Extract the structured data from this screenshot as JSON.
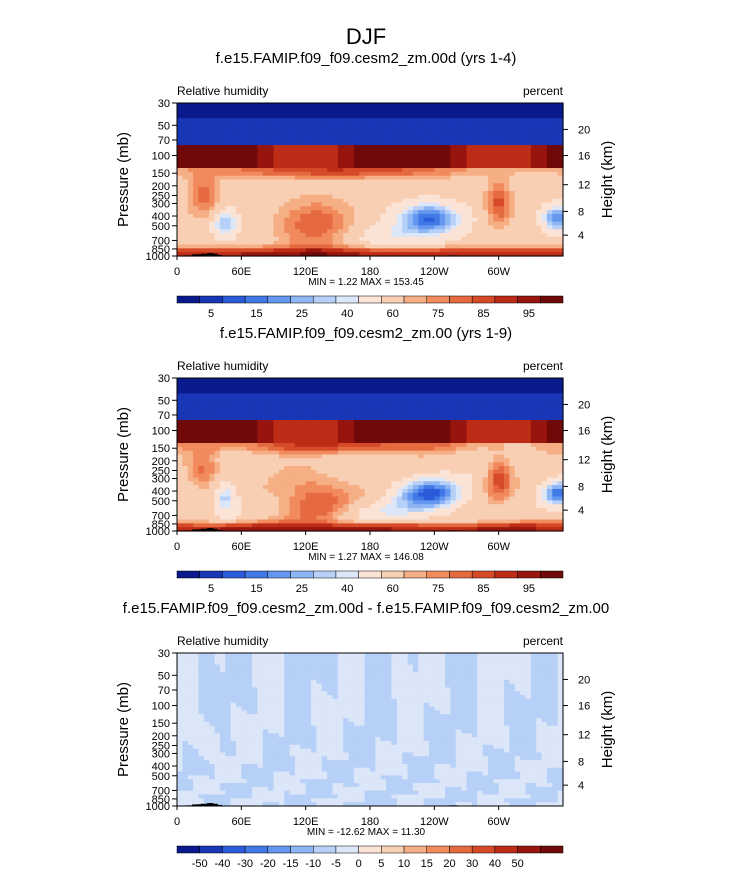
{
  "page": {
    "title": "DJF"
  },
  "colors": {
    "rh_palette": [
      "#0a1a8c",
      "#1836b6",
      "#2a5bd8",
      "#4179e6",
      "#6497ef",
      "#8fb6f4",
      "#b7d0f7",
      "#dbe6f8",
      "#fbe3d6",
      "#f9cfb4",
      "#f6ae85",
      "#f18a5c",
      "#e66a3f",
      "#d64a28",
      "#bd2c17",
      "#98150e",
      "#700a09"
    ],
    "diff_palette": [
      "#0a1a8c",
      "#1836b6",
      "#2a5bd8",
      "#4179e6",
      "#6497ef",
      "#8fb6f4",
      "#b7d0f7",
      "#dbe6f8",
      "#fbe3d6",
      "#f9cfb4",
      "#f6ae85",
      "#f18a5c",
      "#e66a3f",
      "#d64a28",
      "#bd2c17",
      "#98150e",
      "#700a09"
    ]
  },
  "chart_data": [
    {
      "type": "heatmap",
      "title": "f.e15.FAMIP.f09_f09.cesm2_zm.00d (yrs 1-4)",
      "left_label": "Relative humidity",
      "right_label": "percent",
      "ylabel": "Pressure (mb)",
      "ylabel_right": "Height (km)",
      "x_ticks": [
        "0",
        "60E",
        "120E",
        "180",
        "120W",
        "60W"
      ],
      "y_ticks": [
        "30",
        "50",
        "70",
        "100",
        "150",
        "200",
        "250",
        "300",
        "400",
        "500",
        "700",
        "850",
        "1000"
      ],
      "y_right_ticks": [
        "20",
        "16",
        "12",
        "8",
        "4"
      ],
      "stats": "MIN =   1.22  MAX = 153.45",
      "colorbar_labels": [
        "5",
        "15",
        "25",
        "40",
        "60",
        "75",
        "85",
        "95"
      ],
      "colorbar_levels": [
        1,
        5,
        10,
        15,
        20,
        25,
        30,
        35,
        40,
        50,
        60,
        65,
        70,
        75,
        80,
        85,
        90,
        95
      ]
    },
    {
      "type": "heatmap",
      "title": "f.e15.FAMIP.f09_f09.cesm2_zm.00 (yrs 1-9)",
      "left_label": "Relative humidity",
      "right_label": "percent",
      "ylabel": "Pressure (mb)",
      "ylabel_right": "Height (km)",
      "x_ticks": [
        "0",
        "60E",
        "120E",
        "180",
        "120W",
        "60W"
      ],
      "y_ticks": [
        "30",
        "50",
        "70",
        "100",
        "150",
        "200",
        "250",
        "300",
        "400",
        "500",
        "700",
        "850",
        "1000"
      ],
      "y_right_ticks": [
        "20",
        "16",
        "12",
        "8",
        "4"
      ],
      "stats": "MIN =   1.27  MAX = 146.08",
      "colorbar_labels": [
        "5",
        "15",
        "25",
        "40",
        "60",
        "75",
        "85",
        "95"
      ],
      "colorbar_levels": [
        1,
        5,
        10,
        15,
        20,
        25,
        30,
        35,
        40,
        50,
        60,
        65,
        70,
        75,
        80,
        85,
        90,
        95
      ]
    },
    {
      "type": "heatmap",
      "title": "f.e15.FAMIP.f09_f09.cesm2_zm.00d - f.e15.FAMIP.f09_f09.cesm2_zm.00",
      "left_label": "Relative humidity",
      "right_label": "percent",
      "ylabel": "Pressure (mb)",
      "ylabel_right": "Height (km)",
      "x_ticks": [
        "0",
        "60E",
        "120E",
        "180",
        "120W",
        "60W"
      ],
      "y_ticks": [
        "30",
        "50",
        "70",
        "100",
        "150",
        "200",
        "250",
        "300",
        "400",
        "500",
        "700",
        "850",
        "1000"
      ],
      "y_right_ticks": [
        "20",
        "16",
        "12",
        "8",
        "4"
      ],
      "stats": "MIN = -12.62  MAX = 11.30",
      "colorbar_labels": [
        "-50",
        "-40",
        "-30",
        "-20",
        "-15",
        "-10",
        "-5",
        "0",
        "5",
        "10",
        "15",
        "20",
        "30",
        "40",
        "50"
      ],
      "colorbar_levels": [
        -60,
        -50,
        -40,
        -30,
        -20,
        -15,
        -10,
        -5,
        0,
        5,
        10,
        15,
        20,
        30,
        40,
        50,
        60
      ]
    }
  ]
}
